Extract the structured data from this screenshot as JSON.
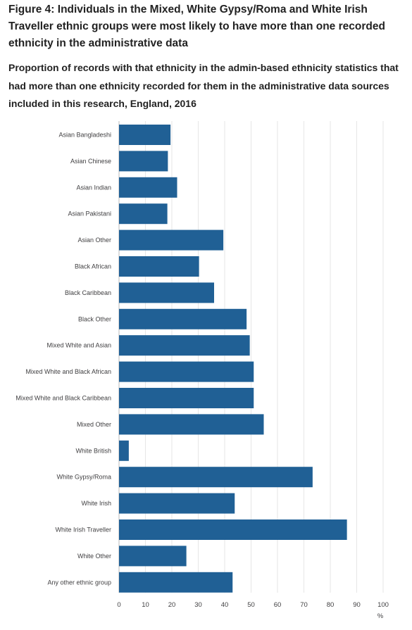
{
  "title": "Figure 4: Individuals in the Mixed, White Gypsy/Roma and White Irish Traveller ethnic groups were most likely to have more than one recorded ethnicity in the administrative data",
  "subtitle": "Proportion of records with that ethnicity in the admin-based ethnicity statistics that had more than one ethnicity recorded for them in the administrative data sources included in this research, England, 2016",
  "colors": {
    "bar": "#206095",
    "grid": "#e6e6e6",
    "axis": "#bbbbbb"
  },
  "chart_data": {
    "type": "bar",
    "orientation": "horizontal",
    "categories": [
      "Asian Bangladeshi",
      "Asian Chinese",
      "Asian Indian",
      "Asian Pakistani",
      "Asian Other",
      "Black African",
      "Black Caribbean",
      "Black Other",
      "Mixed White and Asian",
      "Mixed White and Black African",
      "Mixed White and Black Caribbean",
      "Mixed Other",
      "White British",
      "White Gypsy/Roma",
      "White Irish",
      "White Irish Traveller",
      "White Other",
      "Any other ethnic group"
    ],
    "values": [
      19.5,
      18.5,
      22,
      18.3,
      39.5,
      30.3,
      36,
      48.3,
      49.5,
      51,
      51,
      54.8,
      3.7,
      73.3,
      43.8,
      86.3,
      25.5,
      43
    ],
    "xlim": [
      0,
      100
    ],
    "xticks": [
      0,
      10,
      20,
      30,
      40,
      50,
      60,
      70,
      80,
      90,
      100
    ],
    "unit": "%",
    "grid": true
  }
}
